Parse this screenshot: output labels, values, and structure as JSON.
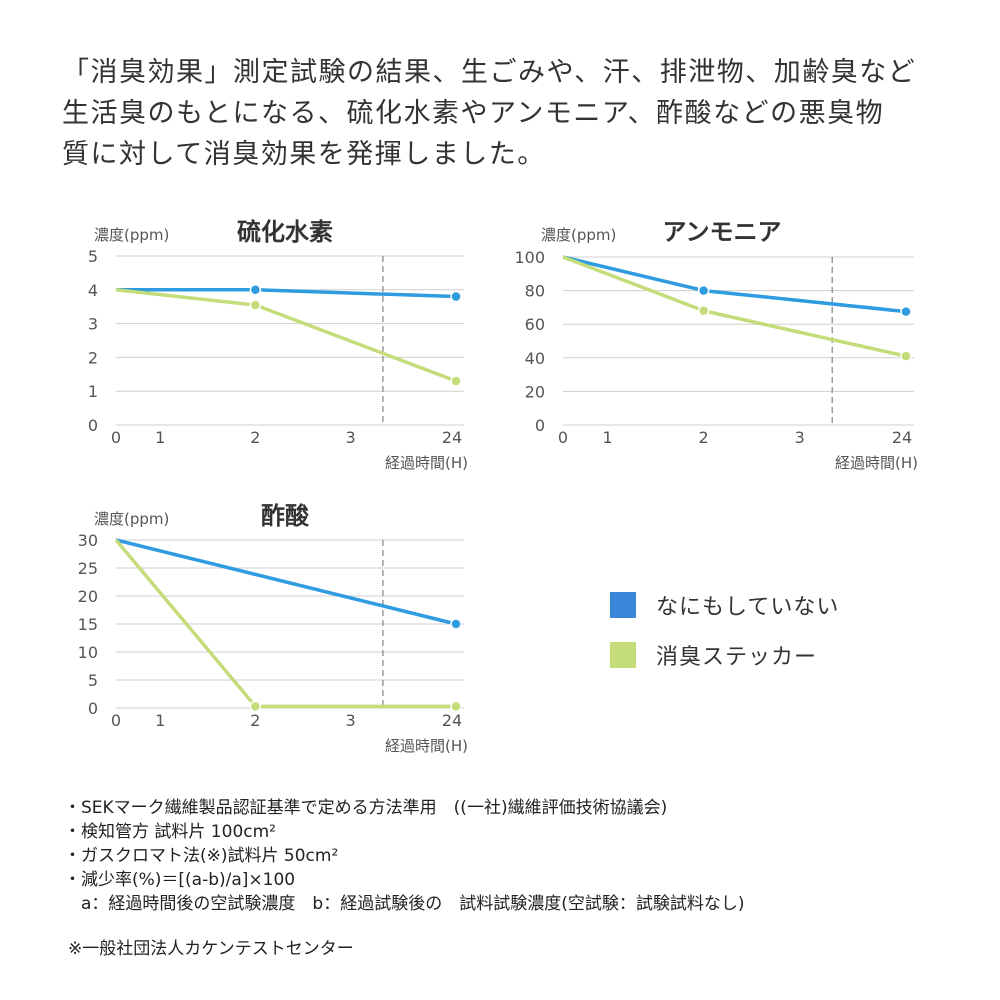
{
  "intro": {
    "lines": [
      "「消臭効果」測定試験の結果、生ごみや、汗、排泄物、加齢臭など",
      "生活臭のもとになる、硫化水素やアンモニア、酢酸などの悪臭物",
      "質に対して消臭効果を発揮しました。"
    ]
  },
  "colors": {
    "none": "#2f9be0",
    "sticker": "#c5dc7a",
    "legend_none": "#3a86d8"
  },
  "legend": {
    "items": [
      {
        "label": "なにもしていない",
        "color": "#3a86d8"
      },
      {
        "label": "消臭ステッカー",
        "color": "#c5dc7a"
      }
    ]
  },
  "chart_data": [
    {
      "type": "line",
      "title": "硫化水素",
      "ylabel": "濃度(ppm)",
      "xlabel": "経過時間(H)",
      "x_ticks": [
        "0",
        "1",
        "2",
        "3",
        "24"
      ],
      "y_ticks": [
        0,
        1,
        2,
        3,
        4,
        5
      ],
      "ylim": [
        0,
        5
      ],
      "axis_break_between": [
        "3",
        "24"
      ],
      "grid": true,
      "series": [
        {
          "name": "なにもしていない",
          "x": [
            0,
            2,
            24
          ],
          "values": [
            4.0,
            4.0,
            3.8
          ]
        },
        {
          "name": "消臭ステッカー",
          "x": [
            0,
            2,
            24
          ],
          "values": [
            4.0,
            3.55,
            1.3
          ]
        }
      ]
    },
    {
      "type": "line",
      "title": "アンモニア",
      "ylabel": "濃度(ppm)",
      "xlabel": "経過時間(H)",
      "x_ticks": [
        "0",
        "1",
        "2",
        "3",
        "24"
      ],
      "y_ticks": [
        0,
        20,
        40,
        60,
        80,
        100
      ],
      "ylim": [
        0,
        100
      ],
      "axis_break_between": [
        "3",
        "24"
      ],
      "grid": true,
      "series": [
        {
          "name": "なにもしていない",
          "x": [
            0,
            2,
            24
          ],
          "values": [
            100,
            80,
            67.5
          ]
        },
        {
          "name": "消臭ステッカー",
          "x": [
            0,
            2,
            24
          ],
          "values": [
            100,
            68,
            41
          ]
        }
      ]
    },
    {
      "type": "line",
      "title": "酢酸",
      "ylabel": "濃度(ppm)",
      "xlabel": "経過時間(H)",
      "x_ticks": [
        "0",
        "1",
        "2",
        "3",
        "24"
      ],
      "y_ticks": [
        0,
        5,
        10,
        15,
        20,
        25,
        30
      ],
      "ylim": [
        0,
        30
      ],
      "axis_break_between": [
        "3",
        "24"
      ],
      "grid": true,
      "series": [
        {
          "name": "なにもしていない",
          "x": [
            0,
            24
          ],
          "values": [
            30,
            15
          ]
        },
        {
          "name": "消臭ステッカー",
          "x": [
            0,
            2,
            24
          ],
          "values": [
            30,
            0.3,
            0.3
          ]
        }
      ]
    }
  ],
  "notes": [
    "・SEKマーク繊維製品認証基準で定める方法準用　((一社)繊維評価技術協議会)",
    "・検知管方 試料片 100cm²",
    "・ガスクロマト法(※)試料片 50cm²",
    "・減少率(%)＝[(a-b)/a]×100",
    "　a：経過時間後の空試験濃度　b：経過試験後の　試料試験濃度(空試験：試験試料なし)"
  ],
  "source": "※一般社団法人カケンテストセンター"
}
